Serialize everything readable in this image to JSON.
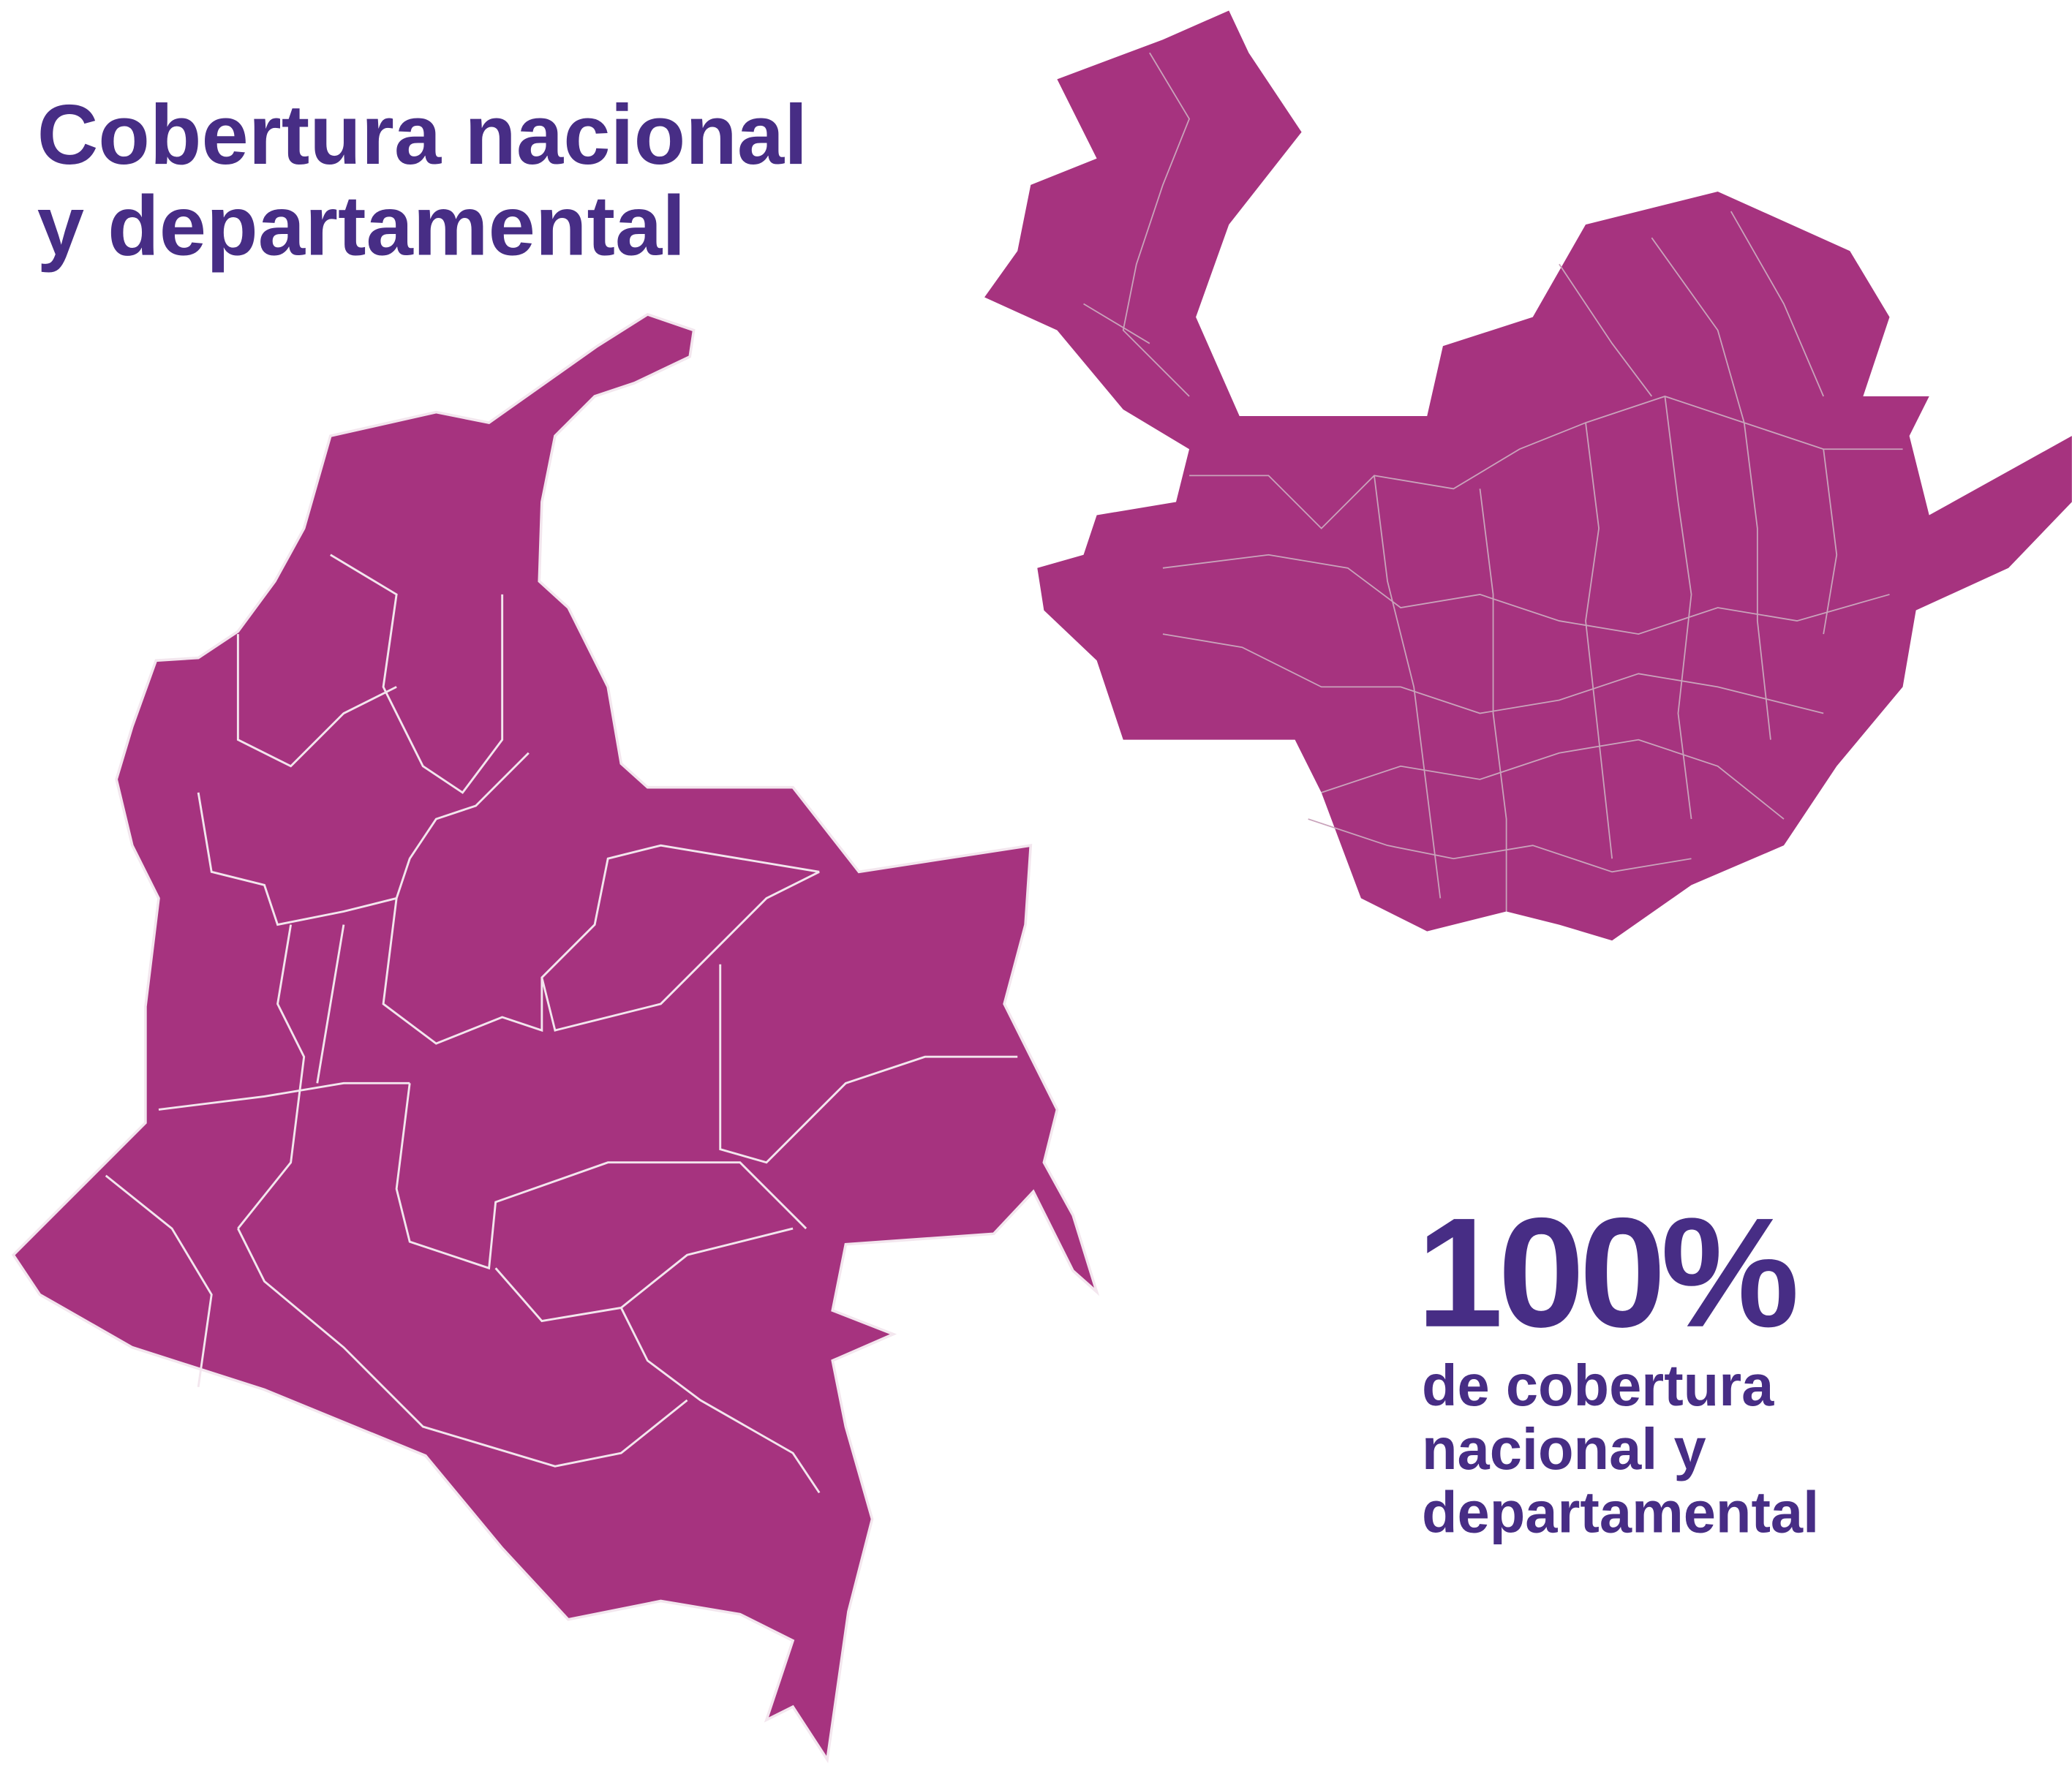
{
  "title": {
    "lines": [
      "Cobertura nacional",
      "y departamental"
    ]
  },
  "stat": {
    "value": "100%",
    "caption_lines": [
      "de cobertura",
      "nacional y",
      "departamental"
    ]
  }
}
